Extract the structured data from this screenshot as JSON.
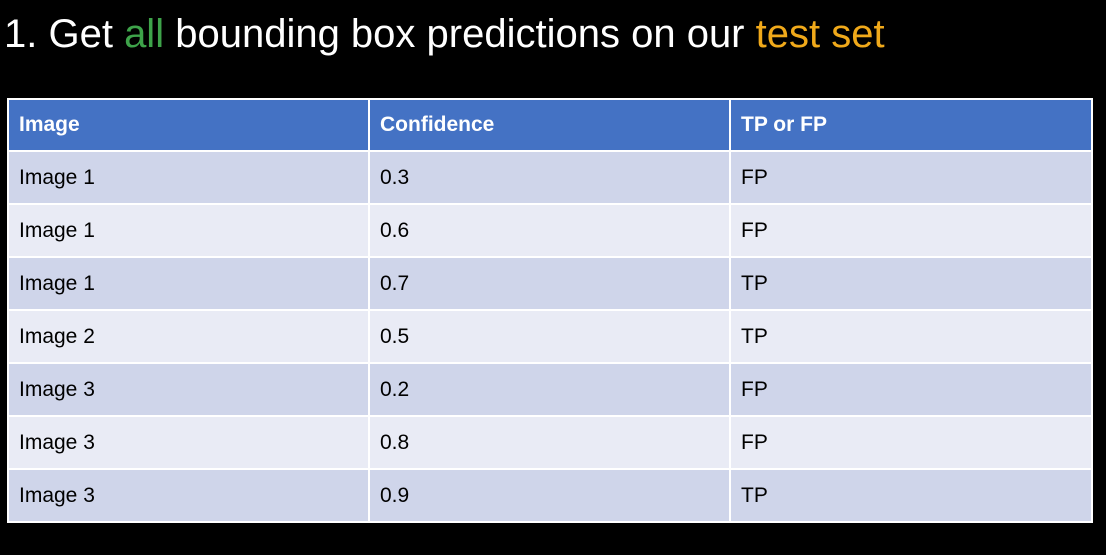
{
  "slide": {
    "title_prefix": "1. Get ",
    "title_highlight_1": "all",
    "title_middle": " bounding box predictions on our ",
    "title_highlight_2": "test set",
    "colors": {
      "background": "#000000",
      "title_text": "#ffffff",
      "highlight_green": "#3ea34a",
      "highlight_orange": "#f0a91a"
    }
  },
  "table": {
    "headers": [
      "Image",
      "Confidence",
      "TP or FP"
    ],
    "rows": [
      [
        "Image 1",
        "0.3",
        "FP"
      ],
      [
        "Image 1",
        "0.6",
        "FP"
      ],
      [
        "Image 1",
        "0.7",
        "TP"
      ],
      [
        "Image 2",
        "0.5",
        "TP"
      ],
      [
        "Image 3",
        "0.2",
        "FP"
      ],
      [
        "Image 3",
        "0.8",
        "FP"
      ],
      [
        "Image 3",
        "0.9",
        "TP"
      ]
    ],
    "colors": {
      "header_bg": "#4472c4",
      "row_band_dark": "#cfd5ea",
      "row_band_light": "#e9ebf5"
    }
  }
}
